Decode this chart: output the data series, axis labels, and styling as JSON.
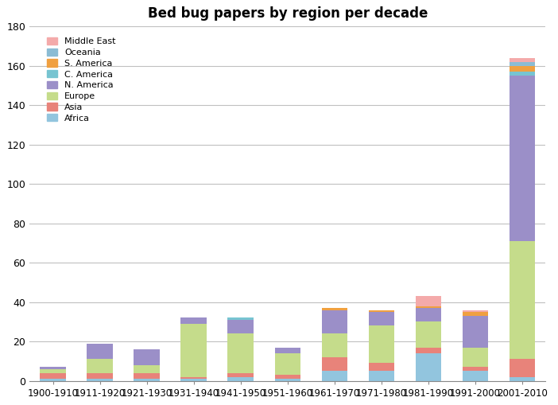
{
  "title": "Bed bug papers by region per decade",
  "decades": [
    "1900-1910",
    "1911-1920",
    "1921-1930",
    "1931-1940",
    "1941-1950",
    "1951-1960",
    "1961-1970",
    "1971-1980",
    "1981-1990",
    "1991-2000",
    "2001-2010"
  ],
  "regions": [
    "Africa",
    "Asia",
    "Europe",
    "N. America",
    "C. America",
    "S. America",
    "Oceania",
    "Middle East"
  ],
  "colors": [
    "#92C5DE",
    "#E8837A",
    "#C5DC8B",
    "#9B8FC8",
    "#77C4D1",
    "#F0A040",
    "#8BBCD4",
    "#F4AAAA"
  ],
  "data": {
    "Africa": [
      1,
      1,
      1,
      1,
      2,
      1,
      5,
      5,
      14,
      5,
      2
    ],
    "Asia": [
      3,
      3,
      3,
      1,
      2,
      2,
      7,
      4,
      3,
      2,
      9
    ],
    "Europe": [
      2,
      7,
      4,
      27,
      20,
      11,
      12,
      19,
      13,
      10,
      60
    ],
    "N. America": [
      1,
      8,
      8,
      3,
      7,
      3,
      12,
      7,
      7,
      16,
      84
    ],
    "C. America": [
      0,
      0,
      0,
      0,
      1,
      0,
      0,
      0,
      0,
      0,
      2
    ],
    "S. America": [
      0,
      0,
      0,
      0,
      0,
      0,
      1,
      1,
      1,
      2,
      3
    ],
    "Oceania": [
      0,
      0,
      0,
      0,
      0,
      0,
      0,
      0,
      0,
      0,
      2
    ],
    "Middle East": [
      0,
      0,
      0,
      0,
      0,
      0,
      0,
      0,
      5,
      1,
      2
    ]
  },
  "ylim": [
    0,
    180
  ],
  "yticks": [
    0,
    20,
    40,
    60,
    80,
    100,
    120,
    140,
    160,
    180
  ],
  "figsize": [
    7.02,
    5.09
  ],
  "dpi": 100,
  "bg_color": "#FFFFFF",
  "grid_color": "#C0C0C0"
}
